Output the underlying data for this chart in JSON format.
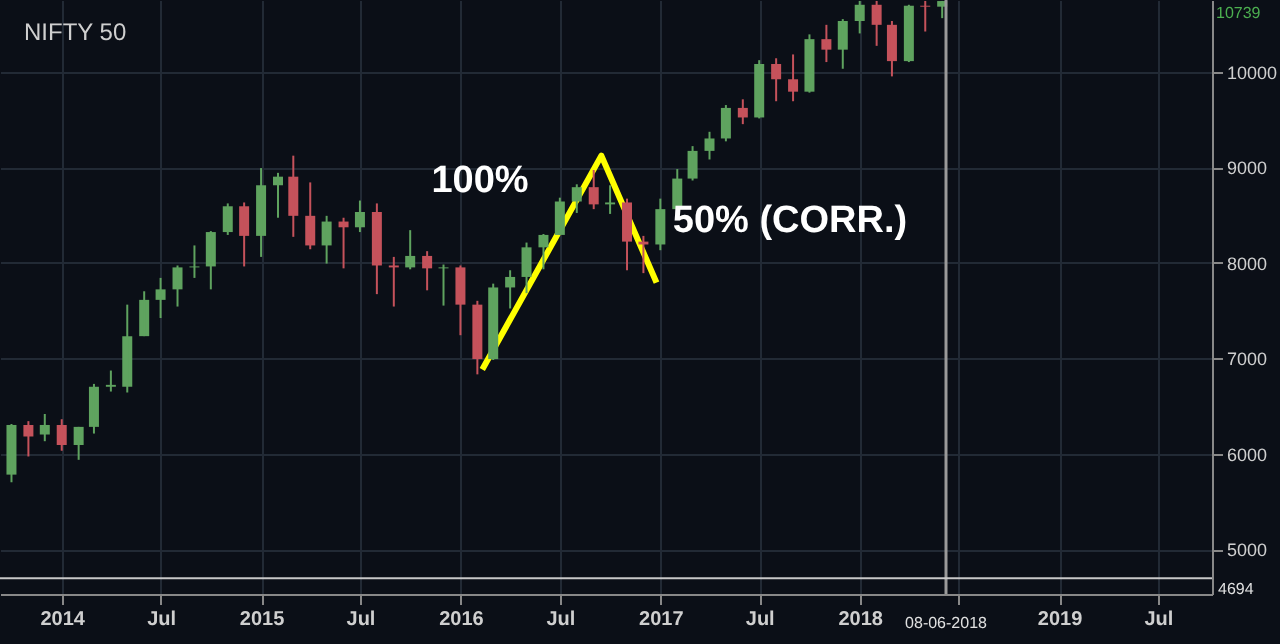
{
  "chart_data": {
    "type": "candlestick",
    "title": "NIFTY 50",
    "x": [
      "2013-10",
      "2013-11",
      "2013-12",
      "2014-01",
      "2014-02",
      "2014-03",
      "2014-04",
      "2014-05",
      "2014-06",
      "2014-07",
      "2014-08",
      "2014-09",
      "2014-10",
      "2014-11",
      "2014-12",
      "2015-01",
      "2015-02",
      "2015-03",
      "2015-04",
      "2015-05",
      "2015-06",
      "2015-07",
      "2015-08",
      "2015-09",
      "2015-10",
      "2015-11",
      "2015-12",
      "2016-01",
      "2016-02",
      "2016-03",
      "2016-04",
      "2016-05",
      "2016-06",
      "2016-07",
      "2016-08",
      "2016-09",
      "2016-10",
      "2016-11",
      "2016-12",
      "2017-01",
      "2017-02",
      "2017-03",
      "2017-04",
      "2017-05",
      "2017-06",
      "2017-07",
      "2017-08",
      "2017-09",
      "2017-10",
      "2017-11",
      "2017-12",
      "2018-01",
      "2018-02",
      "2018-03",
      "2018-04",
      "2018-05",
      "2018-06"
    ],
    "ohlc": [
      [
        5780,
        6310,
        5700,
        6300
      ],
      [
        6300,
        6340,
        5970,
        6180
      ],
      [
        6200,
        6415,
        6130,
        6300
      ],
      [
        6300,
        6360,
        6030,
        6090
      ],
      [
        6090,
        6280,
        5935,
        6280
      ],
      [
        6280,
        6730,
        6210,
        6700
      ],
      [
        6700,
        6870,
        6650,
        6720
      ],
      [
        6700,
        7560,
        6640,
        7230
      ],
      [
        7230,
        7700,
        7230,
        7610
      ],
      [
        7610,
        7840,
        7420,
        7720
      ],
      [
        7720,
        7970,
        7540,
        7950
      ],
      [
        7950,
        8180,
        7840,
        7960
      ],
      [
        7960,
        8330,
        7720,
        8320
      ],
      [
        8320,
        8620,
        8290,
        8590
      ],
      [
        8590,
        8630,
        7960,
        8280
      ],
      [
        8280,
        8990,
        8060,
        8810
      ],
      [
        8810,
        8940,
        8470,
        8900
      ],
      [
        8900,
        9120,
        8270,
        8490
      ],
      [
        8490,
        8840,
        8140,
        8180
      ],
      [
        8180,
        8490,
        7990,
        8430
      ],
      [
        8430,
        8470,
        7940,
        8370
      ],
      [
        8370,
        8650,
        8320,
        8530
      ],
      [
        8530,
        8620,
        7670,
        7970
      ],
      [
        7970,
        8060,
        7540,
        7950
      ],
      [
        7950,
        8340,
        7930,
        8070
      ],
      [
        8070,
        8120,
        7710,
        7940
      ],
      [
        7940,
        7980,
        7550,
        7950
      ],
      [
        7950,
        7970,
        7240,
        7560
      ],
      [
        7560,
        7600,
        6830,
        6990
      ],
      [
        6990,
        7780,
        6980,
        7740
      ],
      [
        7740,
        7920,
        7520,
        7850
      ],
      [
        7850,
        8210,
        7680,
        8160
      ],
      [
        8160,
        8300,
        7930,
        8290
      ],
      [
        8290,
        8680,
        8290,
        8640
      ],
      [
        8640,
        8820,
        8520,
        8790
      ],
      [
        8790,
        8970,
        8560,
        8610
      ],
      [
        8610,
        8810,
        8510,
        8630
      ],
      [
        8630,
        8670,
        7920,
        8220
      ],
      [
        8220,
        8280,
        7890,
        8190
      ],
      [
        8190,
        8670,
        8130,
        8560
      ],
      [
        8560,
        8980,
        8540,
        8880
      ],
      [
        8880,
        9220,
        8860,
        9170
      ],
      [
        9170,
        9370,
        9080,
        9300
      ],
      [
        9300,
        9650,
        9270,
        9620
      ],
      [
        9620,
        9710,
        9450,
        9520
      ],
      [
        9520,
        10120,
        9510,
        10080
      ],
      [
        10080,
        10140,
        9690,
        9920
      ],
      [
        9920,
        10180,
        9690,
        9790
      ],
      [
        9790,
        10390,
        9780,
        10340
      ],
      [
        10340,
        10490,
        10100,
        10230
      ],
      [
        10230,
        10550,
        10030,
        10530
      ],
      [
        10530,
        10740,
        10400,
        10700
      ],
      [
        10700,
        10740,
        10270,
        10490
      ],
      [
        10490,
        10530,
        9950,
        10110
      ],
      [
        10110,
        10700,
        10100,
        10690
      ],
      [
        10690,
        10740,
        10420,
        10680
      ],
      [
        10680,
        10740,
        10560,
        10739
      ]
    ],
    "series": [
      {
        "type": "line",
        "color": "#ffff00",
        "x": [
          "2016-02-10",
          "2016-09-15",
          "2016-12-25"
        ],
        "values": [
          6880,
          9120,
          7790
        ]
      }
    ],
    "xlim": [
      "2013-09-10",
      "2019-10-08"
    ],
    "xticks": [
      {
        "value": "2014-01-01",
        "label": "2014"
      },
      {
        "value": "2014-07-01",
        "label": "Jul"
      },
      {
        "value": "2015-01-01",
        "label": "2015"
      },
      {
        "value": "2015-07-01",
        "label": "Jul"
      },
      {
        "value": "2016-01-01",
        "label": "2016"
      },
      {
        "value": "2016-07-01",
        "label": "Jul"
      },
      {
        "value": "2017-01-01",
        "label": "2017"
      },
      {
        "value": "2017-07-01",
        "label": "Jul"
      },
      {
        "value": "2018-01-01",
        "label": "2018"
      },
      {
        "value": "2018-07-01",
        "label": null
      },
      {
        "value": "2019-01-01",
        "label": "2019"
      },
      {
        "value": "2019-07-01",
        "label": "Jul"
      }
    ],
    "ylim": [
      4530,
      10750
    ],
    "yticks": [
      5000,
      6000,
      7000,
      8000,
      9000,
      10000
    ],
    "grid": true,
    "ref_lines": [
      {
        "axis": "x",
        "value": "2018-06-08",
        "label": "08-06-2018",
        "color": "#9a9a9a"
      },
      {
        "axis": "y",
        "value": 4694,
        "label": "4694",
        "color": "#c8c8c8"
      }
    ],
    "annotations": [
      "100%",
      "50% (CORR.)",
      "10739"
    ]
  }
}
